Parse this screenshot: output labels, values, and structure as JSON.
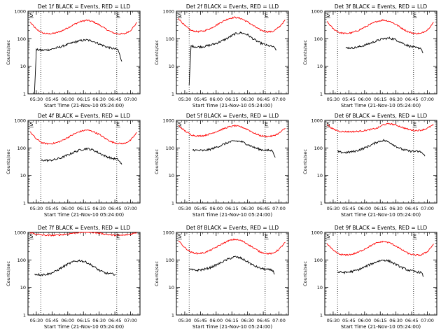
{
  "chart_data": [
    {
      "type": "line",
      "title": "Det 1f BLACK = Events, RED = LLD",
      "xlabel": "Start Time (21-Nov-10 05:24:00)",
      "ylabel": "Counts/sec",
      "ylim": [
        1,
        1000
      ],
      "yscale": "log",
      "xtick_labels": [
        "05:30",
        "05:45",
        "06:00",
        "06:15",
        "06:30",
        "06:45",
        "07:00"
      ],
      "ytick_labels": [
        "1",
        "10",
        "100",
        "1000"
      ],
      "markers": [
        "S",
        "E"
      ],
      "series": [
        {
          "color": "#ff0000",
          "x": [
            5.4,
            5.5,
            5.6,
            5.7,
            5.8,
            5.9,
            6.0,
            6.1,
            6.2,
            6.3,
            6.4,
            6.5,
            6.6,
            6.7,
            6.8,
            6.9,
            7.0,
            7.1
          ],
          "y": [
            400,
            220,
            160,
            150,
            160,
            190,
            250,
            330,
            420,
            470,
            420,
            320,
            230,
            170,
            150,
            150,
            200,
            380
          ]
        },
        {
          "color": "#000000",
          "x": [
            5.47,
            5.5,
            5.6,
            5.7,
            5.8,
            5.9,
            6.0,
            6.1,
            6.2,
            6.3,
            6.4,
            6.5,
            6.6,
            6.7,
            6.8,
            6.86
          ],
          "y": [
            1,
            40,
            38,
            40,
            45,
            52,
            62,
            75,
            85,
            90,
            82,
            65,
            52,
            45,
            40,
            15
          ]
        }
      ]
    },
    {
      "type": "line",
      "title": "Det 2f BLACK = Events, RED = LLD",
      "xlabel": "Start Time (21-Nov-10 05:24:00)",
      "ylabel": "Counts/sec",
      "ylim": [
        1,
        1000
      ],
      "yscale": "log",
      "xtick_labels": [
        "05:30",
        "05:45",
        "06:00",
        "06:15",
        "06:30",
        "06:45",
        "07:00"
      ],
      "ytick_labels": [
        "1",
        "10",
        "100",
        "1000"
      ],
      "markers": [
        "S",
        "E"
      ],
      "series": [
        {
          "color": "#ff0000",
          "x": [
            5.4,
            5.5,
            5.6,
            5.7,
            5.8,
            5.9,
            6.0,
            6.1,
            6.2,
            6.3,
            6.4,
            6.5,
            6.6,
            6.7,
            6.8,
            6.9,
            7.0,
            7.1
          ],
          "y": [
            550,
            300,
            200,
            180,
            190,
            230,
            310,
            420,
            540,
            600,
            540,
            410,
            290,
            210,
            180,
            180,
            260,
            480
          ]
        },
        {
          "color": "#000000",
          "x": [
            5.57,
            5.6,
            5.7,
            5.8,
            5.9,
            6.0,
            6.1,
            6.2,
            6.3,
            6.4,
            6.5,
            6.6,
            6.7,
            6.8,
            6.9,
            6.96
          ],
          "y": [
            2,
            55,
            50,
            52,
            58,
            68,
            85,
            110,
            150,
            165,
            140,
            95,
            70,
            58,
            52,
            40
          ]
        }
      ]
    },
    {
      "type": "line",
      "title": "Det 3f BLACK = Events, RED = LLD",
      "xlabel": "Start Time (21-Nov-10 05:24:00)",
      "ylabel": "Counts/sec",
      "ylim": [
        1,
        1000
      ],
      "yscale": "log",
      "xtick_labels": [
        "05:30",
        "05:45",
        "06:00",
        "06:15",
        "06:30",
        "06:45",
        "07:00"
      ],
      "ytick_labels": [
        "1",
        "10",
        "100",
        "1000"
      ],
      "markers": [
        "S",
        "E"
      ],
      "series": [
        {
          "color": "#ff0000",
          "x": [
            5.4,
            5.5,
            5.6,
            5.7,
            5.8,
            5.9,
            6.0,
            6.1,
            6.2,
            6.3,
            6.4,
            6.5,
            6.6,
            6.7,
            6.8,
            6.9,
            7.0,
            7.1
          ],
          "y": [
            420,
            230,
            165,
            155,
            165,
            200,
            260,
            340,
            430,
            480,
            430,
            330,
            235,
            175,
            155,
            155,
            210,
            390
          ]
        },
        {
          "color": "#000000",
          "x": [
            5.7,
            5.8,
            5.9,
            6.0,
            6.1,
            6.2,
            6.3,
            6.4,
            6.5,
            6.6,
            6.7,
            6.8,
            6.9,
            6.93
          ],
          "y": [
            48,
            46,
            50,
            58,
            70,
            85,
            100,
            105,
            92,
            70,
            55,
            48,
            45,
            30
          ]
        }
      ]
    },
    {
      "type": "line",
      "title": "Det 4f BLACK = Events, RED = LLD",
      "xlabel": "Start Time (21-Nov-10 05:24:00)",
      "ylabel": "Counts/sec",
      "ylim": [
        1,
        1000
      ],
      "yscale": "log",
      "xtick_labels": [
        "05:30",
        "05:45",
        "06:00",
        "06:15",
        "06:30",
        "06:45",
        "07:00"
      ],
      "ytick_labels": [
        "1",
        "10",
        "100",
        "1000"
      ],
      "markers": [
        "S",
        "E"
      ],
      "series": [
        {
          "color": "#ff0000",
          "x": [
            5.4,
            5.5,
            5.6,
            5.7,
            5.8,
            5.9,
            6.0,
            6.1,
            6.2,
            6.3,
            6.4,
            6.5,
            6.6,
            6.7,
            6.8,
            6.9,
            7.0,
            7.1
          ],
          "y": [
            380,
            210,
            150,
            140,
            150,
            180,
            240,
            320,
            400,
            450,
            400,
            310,
            220,
            165,
            145,
            145,
            190,
            360
          ]
        },
        {
          "color": "#000000",
          "x": [
            5.57,
            5.6,
            5.7,
            5.8,
            5.9,
            6.0,
            6.1,
            6.2,
            6.3,
            6.4,
            6.5,
            6.6,
            6.7,
            6.8,
            6.86
          ],
          "y": [
            35,
            36,
            35,
            38,
            44,
            55,
            70,
            85,
            95,
            85,
            65,
            50,
            42,
            38,
            25
          ]
        }
      ]
    },
    {
      "type": "line",
      "title": "Det 5f BLACK = Events, RED = LLD",
      "xlabel": "Start Time (21-Nov-10 05:24:00)",
      "ylabel": "Counts/sec",
      "ylim": [
        1,
        1000
      ],
      "yscale": "log",
      "xtick_labels": [
        "05:30",
        "05:45",
        "06:00",
        "06:15",
        "06:30",
        "06:45",
        "07:00"
      ],
      "ytick_labels": [
        "1",
        "10",
        "100",
        "1000"
      ],
      "markers": [
        "S",
        "E"
      ],
      "series": [
        {
          "color": "#ff0000",
          "x": [
            5.4,
            5.5,
            5.6,
            5.7,
            5.8,
            5.9,
            6.0,
            6.1,
            6.2,
            6.3,
            6.4,
            6.5,
            6.6,
            6.7,
            6.8,
            6.9,
            7.0,
            7.1
          ],
          "y": [
            650,
            420,
            300,
            270,
            280,
            320,
            390,
            480,
            580,
            640,
            580,
            470,
            350,
            280,
            260,
            270,
            340,
            520
          ]
        },
        {
          "color": "#000000",
          "x": [
            5.62,
            5.7,
            5.8,
            5.9,
            6.0,
            6.1,
            6.2,
            6.3,
            6.4,
            6.5,
            6.6,
            6.7,
            6.8,
            6.9,
            6.94
          ],
          "y": [
            85,
            82,
            80,
            88,
            105,
            130,
            160,
            180,
            170,
            135,
            105,
            88,
            82,
            80,
            45
          ]
        }
      ]
    },
    {
      "type": "line",
      "title": "Det 6f BLACK = Events, RED = LLD",
      "xlabel": "Start Time (21-Nov-10 05:24:00)",
      "ylabel": "Counts/sec",
      "ylim": [
        1,
        1000
      ],
      "yscale": "log",
      "xtick_labels": [
        "05:30",
        "05:45",
        "06:00",
        "06:15",
        "06:30",
        "06:45",
        "07:00"
      ],
      "ytick_labels": [
        "1",
        "10",
        "100",
        "1000"
      ],
      "markers": [
        "S",
        "E"
      ],
      "series": [
        {
          "color": "#ff0000",
          "x": [
            5.4,
            5.5,
            5.6,
            5.7,
            5.8,
            5.9,
            6.0,
            6.1,
            6.2,
            6.3,
            6.4,
            6.5,
            6.6,
            6.7,
            6.8,
            6.9,
            7.0,
            7.1
          ],
          "y": [
            700,
            480,
            400,
            390,
            390,
            400,
            430,
            470,
            520,
            700,
            760,
            680,
            560,
            470,
            430,
            440,
            520,
            700
          ]
        },
        {
          "color": "#000000",
          "x": [
            5.57,
            5.6,
            5.7,
            5.8,
            5.9,
            6.0,
            6.1,
            6.2,
            6.3,
            6.4,
            6.5,
            6.6,
            6.7,
            6.8,
            6.9,
            6.96
          ],
          "y": [
            75,
            70,
            68,
            72,
            82,
            100,
            125,
            165,
            190,
            160,
            115,
            88,
            78,
            75,
            72,
            50
          ]
        }
      ]
    },
    {
      "type": "line",
      "title": "Det 7f BLACK = Events, RED = LLD",
      "xlabel": "Start Time (21-Nov-10 05:24:00)",
      "ylabel": "Counts/sec",
      "ylim": [
        1,
        1000
      ],
      "yscale": "log",
      "xtick_labels": [
        "05:30",
        "05:45",
        "06:00",
        "06:15",
        "06:30",
        "06:45",
        "07:00"
      ],
      "ytick_labels": [
        "1",
        "10",
        "100",
        "1000"
      ],
      "markers": [
        "S",
        "E"
      ],
      "series": [
        {
          "color": "#ff0000",
          "x": [
            5.4,
            5.5,
            5.6,
            5.7,
            5.8,
            5.9,
            6.0,
            6.1,
            6.2,
            6.3,
            6.4,
            6.5,
            6.6,
            6.7,
            6.8,
            6.9,
            7.0,
            7.1
          ],
          "y": [
            1000,
            850,
            800,
            780,
            790,
            820,
            880,
            950,
            1000,
            1050,
            1000,
            940,
            860,
            800,
            780,
            790,
            860,
            1000
          ]
        },
        {
          "color": "#000000",
          "x": [
            5.47,
            5.5,
            5.6,
            5.7,
            5.8,
            5.9,
            6.0,
            6.1,
            6.2,
            6.3,
            6.4,
            6.5,
            6.6,
            6.7,
            6.76
          ],
          "y": [
            30,
            30,
            29,
            31,
            38,
            52,
            70,
            88,
            95,
            82,
            60,
            42,
            33,
            31,
            30
          ]
        }
      ]
    },
    {
      "type": "line",
      "title": "Det 8f BLACK = Events, RED = LLD",
      "xlabel": "Start Time (21-Nov-10 05:24:00)",
      "ylabel": "Counts/sec",
      "ylim": [
        1,
        1000
      ],
      "yscale": "log",
      "xtick_labels": [
        "05:30",
        "05:45",
        "06:00",
        "06:15",
        "06:30",
        "06:45",
        "07:00"
      ],
      "ytick_labels": [
        "1",
        "10",
        "100",
        "1000"
      ],
      "markers": [
        "S",
        "E"
      ],
      "series": [
        {
          "color": "#ff0000",
          "x": [
            5.4,
            5.5,
            5.6,
            5.7,
            5.8,
            5.9,
            6.0,
            6.1,
            6.2,
            6.3,
            6.4,
            6.5,
            6.6,
            6.7,
            6.8,
            6.9,
            7.0,
            7.1
          ],
          "y": [
            500,
            280,
            190,
            170,
            180,
            220,
            290,
            390,
            500,
            560,
            500,
            380,
            270,
            195,
            170,
            170,
            240,
            440
          ]
        },
        {
          "color": "#000000",
          "x": [
            5.57,
            5.6,
            5.7,
            5.8,
            5.9,
            6.0,
            6.1,
            6.2,
            6.3,
            6.4,
            6.5,
            6.6,
            6.7,
            6.8,
            6.9,
            6.93
          ],
          "y": [
            45,
            44,
            42,
            45,
            52,
            65,
            85,
            110,
            130,
            115,
            85,
            62,
            50,
            45,
            42,
            30
          ]
        }
      ]
    },
    {
      "type": "line",
      "title": "Det 9f BLACK = Events, RED = LLD",
      "xlabel": "Start Time (21-Nov-10 05:24:00)",
      "ylabel": "Counts/sec",
      "ylim": [
        1,
        1000
      ],
      "yscale": "log",
      "xtick_labels": [
        "05:30",
        "05:45",
        "06:00",
        "06:15",
        "06:30",
        "06:45",
        "07:00"
      ],
      "ytick_labels": [
        "1",
        "10",
        "100",
        "1000"
      ],
      "markers": [
        "S",
        "E"
      ],
      "series": [
        {
          "color": "#ff0000",
          "x": [
            5.4,
            5.5,
            5.6,
            5.7,
            5.8,
            5.9,
            6.0,
            6.1,
            6.2,
            6.3,
            6.4,
            6.5,
            6.6,
            6.7,
            6.8,
            6.9,
            7.0,
            7.1
          ],
          "y": [
            400,
            220,
            160,
            150,
            160,
            190,
            250,
            330,
            420,
            470,
            420,
            320,
            230,
            170,
            150,
            150,
            200,
            380
          ]
        },
        {
          "color": "#000000",
          "x": [
            5.57,
            5.6,
            5.7,
            5.8,
            5.9,
            6.0,
            6.1,
            6.2,
            6.3,
            6.4,
            6.5,
            6.6,
            6.7,
            6.8,
            6.9,
            6.94
          ],
          "y": [
            35,
            36,
            35,
            38,
            44,
            55,
            70,
            88,
            100,
            90,
            68,
            52,
            42,
            38,
            35,
            25
          ]
        }
      ]
    }
  ]
}
